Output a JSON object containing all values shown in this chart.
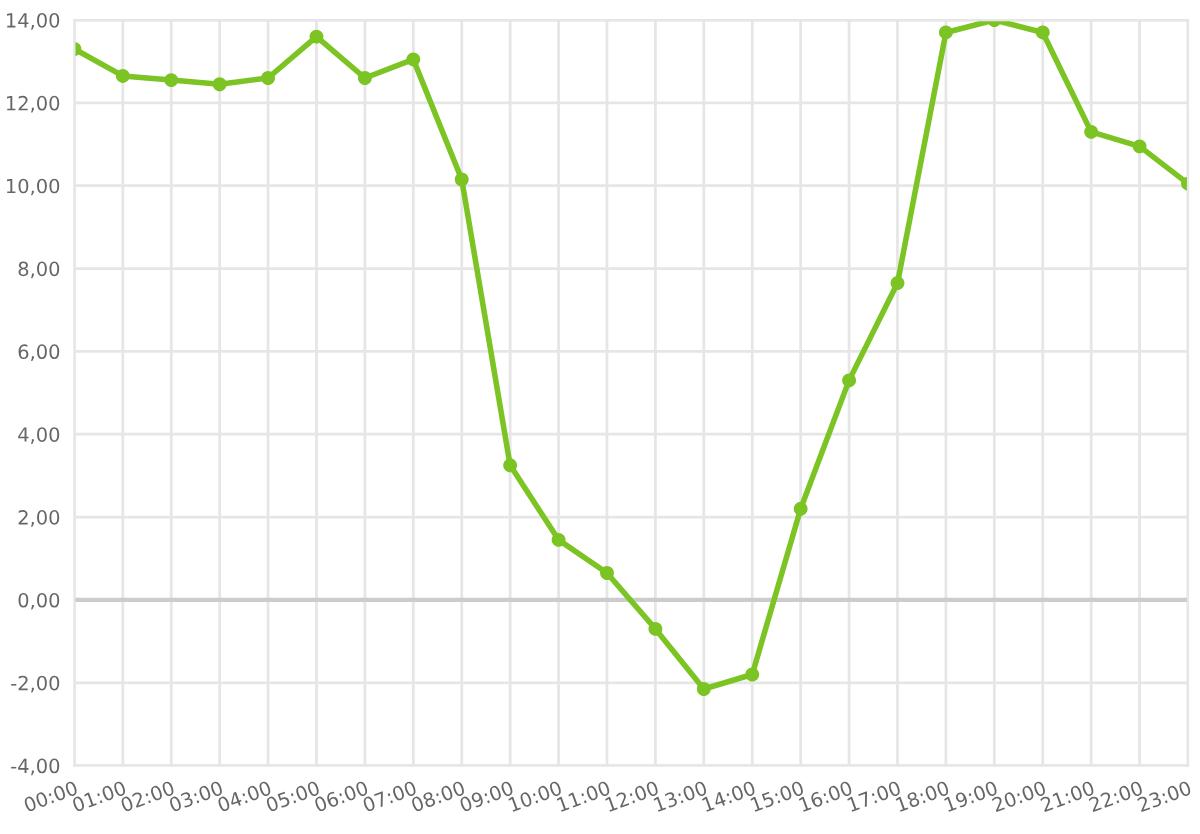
{
  "chart_data": {
    "type": "line",
    "categories": [
      "00:00",
      "01:00",
      "02:00",
      "03:00",
      "04:00",
      "05:00",
      "06:00",
      "07:00",
      "08:00",
      "09:00",
      "10:00",
      "11:00",
      "12:00",
      "13:00",
      "14:00",
      "15:00",
      "16:00",
      "17:00",
      "18:00",
      "19:00",
      "20:00",
      "21:00",
      "22:00",
      "23:00"
    ],
    "series": [
      {
        "color": "#7cc424",
        "values": [
          13.3,
          12.65,
          12.55,
          12.45,
          12.6,
          13.6,
          12.6,
          13.05,
          10.15,
          3.25,
          1.45,
          0.65,
          -0.7,
          -2.15,
          -1.8,
          2.2,
          5.3,
          7.65,
          13.7,
          14.0,
          13.7,
          11.3,
          10.95,
          10.05
        ]
      }
    ],
    "ylim": [
      -4,
      14
    ],
    "yticks": [
      {
        "value": -4,
        "label": "-4,00"
      },
      {
        "value": -2,
        "label": "-2,00"
      },
      {
        "value": 0,
        "label": "0,00"
      },
      {
        "value": 2,
        "label": "2,00"
      },
      {
        "value": 4,
        "label": "4,00"
      },
      {
        "value": 6,
        "label": "6,00"
      },
      {
        "value": 8,
        "label": "8,00"
      },
      {
        "value": 10,
        "label": "10,00"
      },
      {
        "value": 12,
        "label": "12,00"
      },
      {
        "value": 14,
        "label": "14,00"
      }
    ],
    "ref_lines": [
      {
        "axis": "y",
        "value": 0,
        "label": null,
        "color": "#cccccc"
      }
    ],
    "grid": true,
    "legend": false,
    "marker": "circle",
    "line_style": "solid"
  }
}
